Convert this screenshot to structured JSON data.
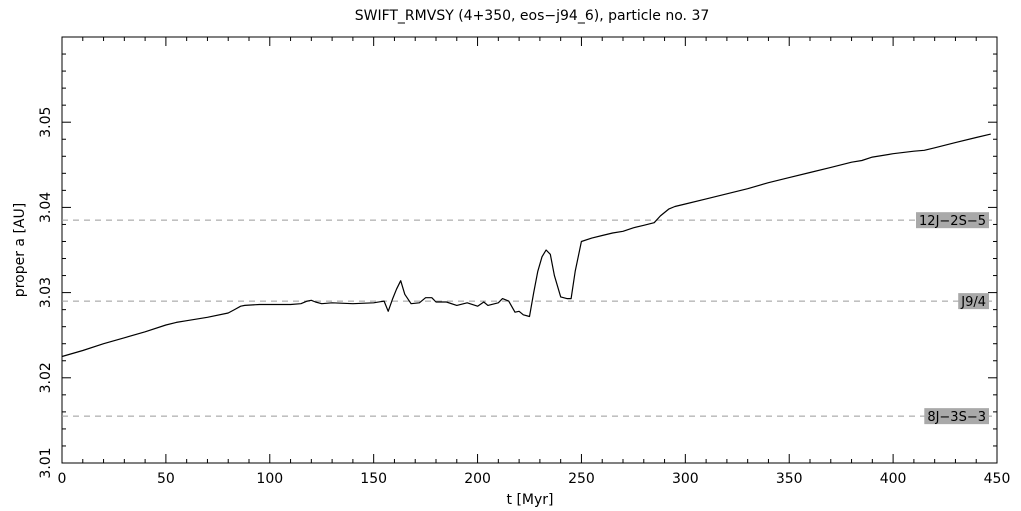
{
  "chart_data": {
    "type": "line",
    "title": "SWIFT_RMVSY (4+350, eos−j94_6), particle no. 37",
    "xlabel": "t [Myr]",
    "ylabel": "proper a [AU]",
    "xlim": [
      0,
      450
    ],
    "ylim": [
      3.01,
      3.06
    ],
    "x_ticks": [
      "0",
      "50",
      "100",
      "150",
      "200",
      "250",
      "300",
      "350",
      "400",
      "450"
    ],
    "y_ticks": [
      "3.01",
      "3.02",
      "3.03",
      "3.04",
      "3.05"
    ],
    "grid": false,
    "resonances": [
      {
        "label": "12J−2S−5",
        "a": 3.0385
      },
      {
        "label": "J9/4",
        "a": 3.029
      },
      {
        "label": "8J−3S−3",
        "a": 3.0155
      }
    ],
    "series": [
      {
        "x": [
          0,
          10,
          20,
          30,
          40,
          50,
          55,
          60,
          70,
          80,
          83,
          86,
          88,
          95,
          100,
          110,
          115,
          118,
          120,
          122,
          125,
          130,
          140,
          150,
          155,
          157,
          159,
          161,
          163,
          165,
          168,
          172,
          175,
          178,
          180,
          185,
          190,
          195,
          200,
          203,
          205,
          210,
          212,
          215,
          218,
          220,
          222,
          225,
          227,
          229,
          231,
          233,
          235,
          237,
          240,
          243,
          245,
          247,
          250,
          255,
          260,
          265,
          270,
          275,
          280,
          285,
          288,
          292,
          295,
          300,
          310,
          320,
          330,
          340,
          350,
          360,
          370,
          380,
          385,
          390,
          400,
          410,
          415,
          420,
          430,
          440,
          447
        ],
        "y": [
          3.0225,
          3.0232,
          3.024,
          3.0247,
          3.0254,
          3.0262,
          3.0265,
          3.0267,
          3.0271,
          3.0276,
          3.028,
          3.0284,
          3.0285,
          3.0286,
          3.0286,
          3.0286,
          3.0287,
          3.029,
          3.0291,
          3.0289,
          3.0287,
          3.0288,
          3.0287,
          3.0288,
          3.029,
          3.0278,
          3.0292,
          3.0304,
          3.0314,
          3.0298,
          3.0287,
          3.0288,
          3.0294,
          3.0294,
          3.0289,
          3.0289,
          3.0285,
          3.0288,
          3.0284,
          3.0289,
          3.0285,
          3.0288,
          3.0293,
          3.029,
          3.0277,
          3.0278,
          3.0274,
          3.0272,
          3.03,
          3.0325,
          3.0342,
          3.035,
          3.0345,
          3.032,
          3.0295,
          3.0293,
          3.0293,
          3.0325,
          3.036,
          3.0364,
          3.0367,
          3.037,
          3.0372,
          3.0376,
          3.0379,
          3.0382,
          3.039,
          3.0398,
          3.0401,
          3.0404,
          3.041,
          3.0416,
          3.0422,
          3.0429,
          3.0435,
          3.0441,
          3.0447,
          3.0453,
          3.0455,
          3.0459,
          3.0463,
          3.0466,
          3.0467,
          3.047,
          3.0476,
          3.0482,
          3.0486
        ]
      }
    ]
  }
}
